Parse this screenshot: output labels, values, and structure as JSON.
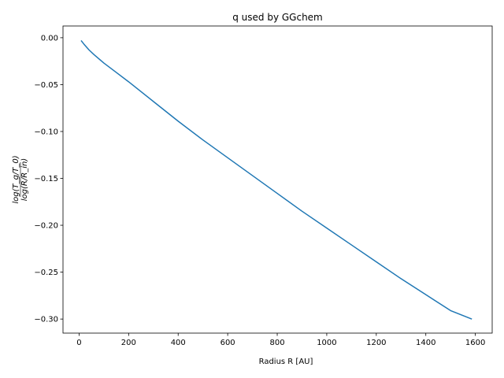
{
  "chart_data": {
    "type": "line",
    "title": "q used by GGchem",
    "xlabel": "Radius R [AU]",
    "ylabel": {
      "numerator": "log(T_g/T_0)",
      "denominator": "log(R/R_in)"
    },
    "xlim": [
      -65,
      1668
    ],
    "ylim": [
      -0.315,
      0.0125
    ],
    "xticks": [
      0,
      200,
      400,
      600,
      800,
      1000,
      1200,
      1400,
      1600
    ],
    "xtick_labels": [
      "0",
      "200",
      "400",
      "600",
      "800",
      "1000",
      "1200",
      "1400",
      "1600"
    ],
    "yticks": [
      0.0,
      -0.05,
      -0.1,
      -0.15,
      -0.2,
      -0.25,
      -0.3
    ],
    "ytick_labels": [
      "0.00",
      "−0.05",
      "−0.10",
      "−0.15",
      "−0.20",
      "−0.25",
      "−0.30"
    ],
    "grid": false,
    "series": [
      {
        "color": "#1f77b4",
        "x": [
          8,
          20,
          40,
          60,
          100,
          150,
          200,
          300,
          400,
          500,
          600,
          700,
          800,
          900,
          1000,
          1100,
          1200,
          1300,
          1400,
          1500,
          1586
        ],
        "y": [
          -0.003,
          -0.007,
          -0.013,
          -0.018,
          -0.027,
          -0.037,
          -0.047,
          -0.068,
          -0.089,
          -0.109,
          -0.128,
          -0.147,
          -0.166,
          -0.185,
          -0.203,
          -0.221,
          -0.239,
          -0.257,
          -0.274,
          -0.291,
          -0.3
        ]
      }
    ]
  }
}
